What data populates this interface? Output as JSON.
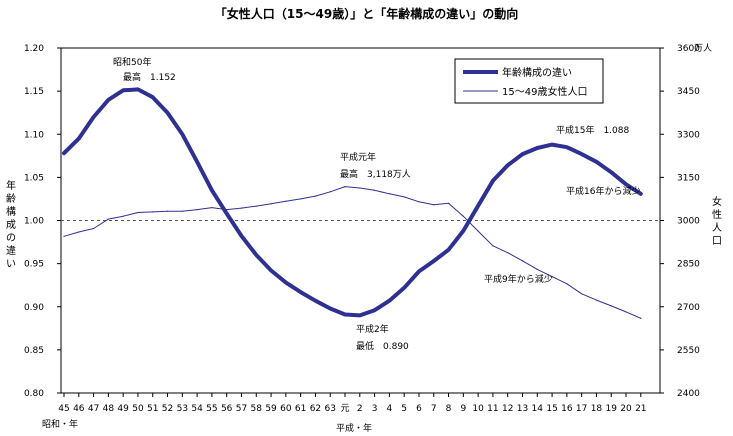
{
  "chart_data": {
    "type": "line",
    "title": "「女性人口（15～49歳）」と「年齢構成の違い」の動向",
    "categories": [
      "45",
      "46",
      "47",
      "48",
      "49",
      "50",
      "51",
      "52",
      "53",
      "54",
      "55",
      "56",
      "57",
      "58",
      "59",
      "60",
      "61",
      "62",
      "63",
      "元",
      "2",
      "3",
      "4",
      "5",
      "6",
      "7",
      "8",
      "9",
      "10",
      "11",
      "12",
      "13",
      "14",
      "15",
      "16",
      "17",
      "18",
      "19",
      "20",
      "21"
    ],
    "x_era_labels": {
      "showa": "昭和・年",
      "heisei": "平成・年"
    },
    "y_left": {
      "label": "年齢構成の違い",
      "ticks": [
        "0.80",
        "0.85",
        "0.90",
        "0.95",
        "1.00",
        "1.05",
        "1.10",
        "1.15",
        "1.20"
      ],
      "ylim": [
        0.8,
        1.2
      ]
    },
    "y_right": {
      "label": "女性人口",
      "unit": "万人",
      "ticks": [
        "2400",
        "2550",
        "2700",
        "2850",
        "3000",
        "3150",
        "3300",
        "3450",
        "3600"
      ],
      "ylim": [
        2400,
        3600
      ]
    },
    "reference_line": 1.0,
    "legend": {
      "position": "top-right"
    },
    "series": [
      {
        "name": "年齢構成の違い",
        "axis": "left",
        "color": "#2e3192",
        "weight": "thick",
        "values": [
          1.078,
          1.095,
          1.12,
          1.14,
          1.151,
          1.152,
          1.143,
          1.125,
          1.1,
          1.068,
          1.035,
          1.008,
          0.982,
          0.96,
          0.942,
          0.928,
          0.917,
          0.907,
          0.898,
          0.891,
          0.89,
          0.896,
          0.907,
          0.922,
          0.941,
          0.953,
          0.966,
          0.988,
          1.017,
          1.046,
          1.064,
          1.077,
          1.084,
          1.088,
          1.085,
          1.077,
          1.068,
          1.056,
          1.042,
          1.031
        ]
      },
      {
        "name": "15～49歳女性人口",
        "axis": "right",
        "color": "#2e3192",
        "weight": "thin",
        "values": [
          2945,
          2960,
          2972,
          3005,
          3015,
          3028,
          3030,
          3032,
          3032,
          3038,
          3045,
          3038,
          3043,
          3050,
          3058,
          3067,
          3075,
          3085,
          3100,
          3118,
          3113,
          3105,
          3093,
          3082,
          3065,
          3055,
          3060,
          3015,
          2963,
          2912,
          2888,
          2860,
          2830,
          2805,
          2780,
          2745,
          2723,
          2703,
          2682,
          2660
        ]
      }
    ],
    "annotations": [
      {
        "lines": [
          "昭和50年",
          "最高　1.152"
        ]
      },
      {
        "lines": [
          "平成元年",
          "最高　3,118万人"
        ]
      },
      {
        "lines": [
          "平成2年",
          "最低　0.890"
        ]
      },
      {
        "lines": [
          "平成15年　1.088"
        ]
      },
      {
        "lines": [
          "平成16年から減少"
        ]
      },
      {
        "lines": [
          "平成9年から減少"
        ]
      }
    ]
  }
}
